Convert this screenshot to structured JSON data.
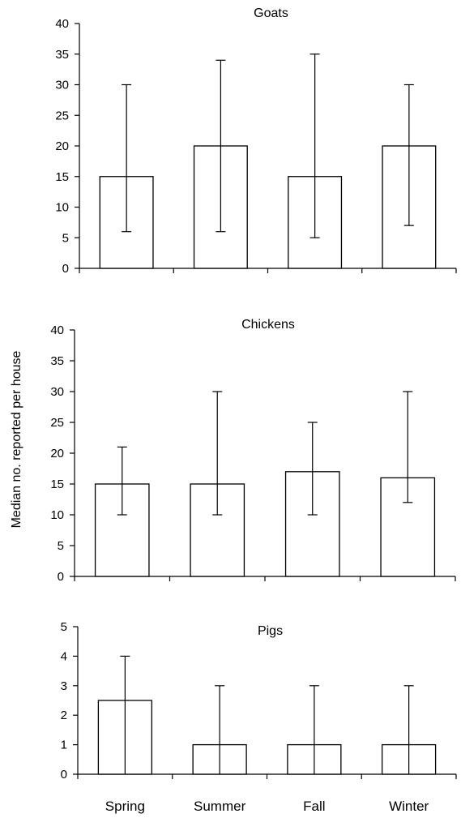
{
  "chart_data": {
    "type": "bar",
    "ylabel": "Median no. reported per house",
    "categories": [
      "Spring",
      "Summer",
      "Fall",
      "Winter"
    ],
    "error_bars": "whiskers (range)",
    "grid": false,
    "panels": [
      {
        "title": "Goats",
        "ylim": [
          0,
          40
        ],
        "yticks": [
          0,
          5,
          10,
          15,
          20,
          25,
          30,
          35,
          40
        ],
        "values": [
          15,
          20,
          15,
          20
        ],
        "err_low": [
          6,
          6,
          5,
          7
        ],
        "err_high": [
          30,
          34,
          35,
          30
        ]
      },
      {
        "title": "Chickens",
        "ylim": [
          0,
          40
        ],
        "yticks": [
          0,
          5,
          10,
          15,
          20,
          25,
          30,
          35,
          40
        ],
        "values": [
          15,
          15,
          17,
          16
        ],
        "err_low": [
          10,
          10,
          10,
          12
        ],
        "err_high": [
          21,
          30,
          25,
          30
        ]
      },
      {
        "title": "Pigs",
        "ylim": [
          0,
          5
        ],
        "yticks": [
          0,
          1,
          2,
          3,
          4,
          5
        ],
        "values": [
          2.5,
          1,
          1,
          1
        ],
        "err_low": [
          0,
          0,
          0,
          0
        ],
        "err_high": [
          4,
          3,
          3,
          3
        ]
      }
    ]
  }
}
